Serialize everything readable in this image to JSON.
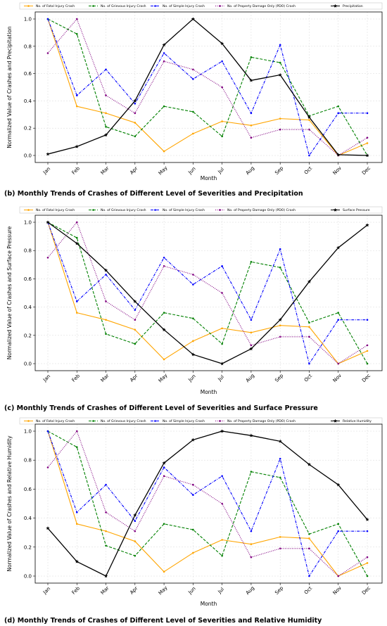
{
  "chart_data": [
    {
      "type": "line",
      "caption": "(b) Monthly Trends of Crashes of Different Level of Severities and Precipitation",
      "xlabel": "Month",
      "ylabel": "Normalized Value of Crashes and Precipitation",
      "ylim": [
        0.0,
        1.0
      ],
      "yticks": [
        "0.0",
        "0.2",
        "0.4",
        "0.6",
        "0.8",
        "1.0"
      ],
      "categories": [
        "Jan",
        "Feb",
        "Mar",
        "Apr",
        "May",
        "Jun",
        "Jul",
        "Aug",
        "Sep",
        "Oct",
        "Nov",
        "Dec"
      ],
      "grid": true,
      "legend_position": "top",
      "series": [
        {
          "name": "No. of Fatal Injury Crash",
          "color": "#ffa500",
          "dash": "solid",
          "marker": "circle",
          "values": [
            1.0,
            0.36,
            0.31,
            0.24,
            0.03,
            0.16,
            0.25,
            0.22,
            0.27,
            0.26,
            0.0,
            0.09
          ]
        },
        {
          "name": "No. of Grievous Injury Crash",
          "color": "#008000",
          "dash": "dashed",
          "marker": "circle",
          "values": [
            1.0,
            0.89,
            0.21,
            0.14,
            0.36,
            0.32,
            0.14,
            0.72,
            0.68,
            0.29,
            0.36,
            0.0
          ]
        },
        {
          "name": "No. of Simple Injury Crash",
          "color": "#0000ff",
          "dash": "dashdot",
          "marker": "circle",
          "values": [
            1.0,
            0.44,
            0.63,
            0.38,
            0.75,
            0.56,
            0.69,
            0.31,
            0.81,
            0.0,
            0.31,
            0.31
          ]
        },
        {
          "name": "No. of Property Damage Only (PDO) Crash",
          "color": "#800080",
          "dash": "dotted",
          "marker": "circle",
          "values": [
            0.75,
            1.0,
            0.44,
            0.31,
            0.69,
            0.63,
            0.5,
            0.13,
            0.19,
            0.19,
            0.0,
            0.13
          ]
        },
        {
          "name": "Precipitation",
          "color": "#000000",
          "dash": "solid",
          "marker": "star",
          "values": [
            0.01,
            0.065,
            0.15,
            0.4,
            0.81,
            1.0,
            0.82,
            0.55,
            0.59,
            0.28,
            0.005,
            0.0
          ]
        }
      ]
    },
    {
      "type": "line",
      "caption": "(c) Monthly Trends of Crashes of Different Level of Severities and Surface Pressure",
      "xlabel": "Month",
      "ylabel": "Normalized Value of Crashes and Surface Pressure",
      "ylim": [
        0.0,
        1.0
      ],
      "yticks": [
        "0.0",
        "0.2",
        "0.4",
        "0.6",
        "0.8",
        "1.0"
      ],
      "categories": [
        "Jan",
        "Feb",
        "Mar",
        "Apr",
        "May",
        "Jun",
        "Jul",
        "Aug",
        "Sep",
        "Oct",
        "Nov",
        "Dec"
      ],
      "grid": true,
      "legend_position": "top",
      "series": [
        {
          "name": "No. of Fatal Injury Crash",
          "color": "#ffa500",
          "dash": "solid",
          "marker": "circle",
          "values": [
            1.0,
            0.36,
            0.31,
            0.24,
            0.03,
            0.16,
            0.25,
            0.22,
            0.27,
            0.26,
            0.0,
            0.09
          ]
        },
        {
          "name": "No. of Grievous Injury Crash",
          "color": "#008000",
          "dash": "dashed",
          "marker": "circle",
          "values": [
            1.0,
            0.89,
            0.21,
            0.14,
            0.36,
            0.32,
            0.14,
            0.72,
            0.68,
            0.29,
            0.36,
            0.0
          ]
        },
        {
          "name": "No. of Simple Injury Crash",
          "color": "#0000ff",
          "dash": "dashdot",
          "marker": "circle",
          "values": [
            1.0,
            0.44,
            0.63,
            0.38,
            0.75,
            0.56,
            0.69,
            0.31,
            0.81,
            0.0,
            0.31,
            0.31
          ]
        },
        {
          "name": "No. of Property Damage Only (PDO) Crash",
          "color": "#800080",
          "dash": "dotted",
          "marker": "circle",
          "values": [
            0.75,
            1.0,
            0.44,
            0.31,
            0.69,
            0.63,
            0.5,
            0.13,
            0.19,
            0.19,
            0.0,
            0.13
          ]
        },
        {
          "name": "Surface Pressure",
          "color": "#000000",
          "dash": "solid",
          "marker": "star",
          "values": [
            1.0,
            0.85,
            0.66,
            0.44,
            0.24,
            0.065,
            0.0,
            0.105,
            0.31,
            0.58,
            0.82,
            0.98
          ]
        }
      ]
    },
    {
      "type": "line",
      "caption": "(d) Monthly Trends of Crashes of Different Level of Severities and Relative Humidity",
      "xlabel": "Month",
      "ylabel": "Normalized Value of Crashes and Relative Humidity",
      "ylim": [
        0.0,
        1.0
      ],
      "yticks": [
        "0.0",
        "0.2",
        "0.4",
        "0.6",
        "0.8",
        "1.0"
      ],
      "categories": [
        "Jan",
        "Feb",
        "Mar",
        "Apr",
        "May",
        "Jun",
        "Jul",
        "Aug",
        "Sep",
        "Oct",
        "Nov",
        "Dec"
      ],
      "grid": true,
      "legend_position": "top",
      "series": [
        {
          "name": "No. of Fatal Injury Crash",
          "color": "#ffa500",
          "dash": "solid",
          "marker": "circle",
          "values": [
            1.0,
            0.36,
            0.31,
            0.24,
            0.03,
            0.16,
            0.25,
            0.22,
            0.27,
            0.26,
            0.0,
            0.09
          ]
        },
        {
          "name": "No. of Grievous Injury Crash",
          "color": "#008000",
          "dash": "dashed",
          "marker": "circle",
          "values": [
            1.0,
            0.89,
            0.21,
            0.14,
            0.36,
            0.32,
            0.14,
            0.72,
            0.68,
            0.29,
            0.36,
            0.0
          ]
        },
        {
          "name": "No. of Simple Injury Crash",
          "color": "#0000ff",
          "dash": "dashdot",
          "marker": "circle",
          "values": [
            1.0,
            0.44,
            0.63,
            0.38,
            0.75,
            0.56,
            0.69,
            0.31,
            0.81,
            0.0,
            0.31,
            0.31
          ]
        },
        {
          "name": "No. of Property Damage Only (PDO) Crash",
          "color": "#800080",
          "dash": "dotted",
          "marker": "circle",
          "values": [
            0.75,
            1.0,
            0.44,
            0.31,
            0.69,
            0.63,
            0.5,
            0.13,
            0.19,
            0.19,
            0.0,
            0.13
          ]
        },
        {
          "name": "Relative Humidity",
          "color": "#000000",
          "dash": "solid",
          "marker": "star",
          "values": [
            0.33,
            0.1,
            0.0,
            0.42,
            0.78,
            0.94,
            1.0,
            0.97,
            0.93,
            0.77,
            0.63,
            0.39
          ]
        }
      ]
    }
  ]
}
